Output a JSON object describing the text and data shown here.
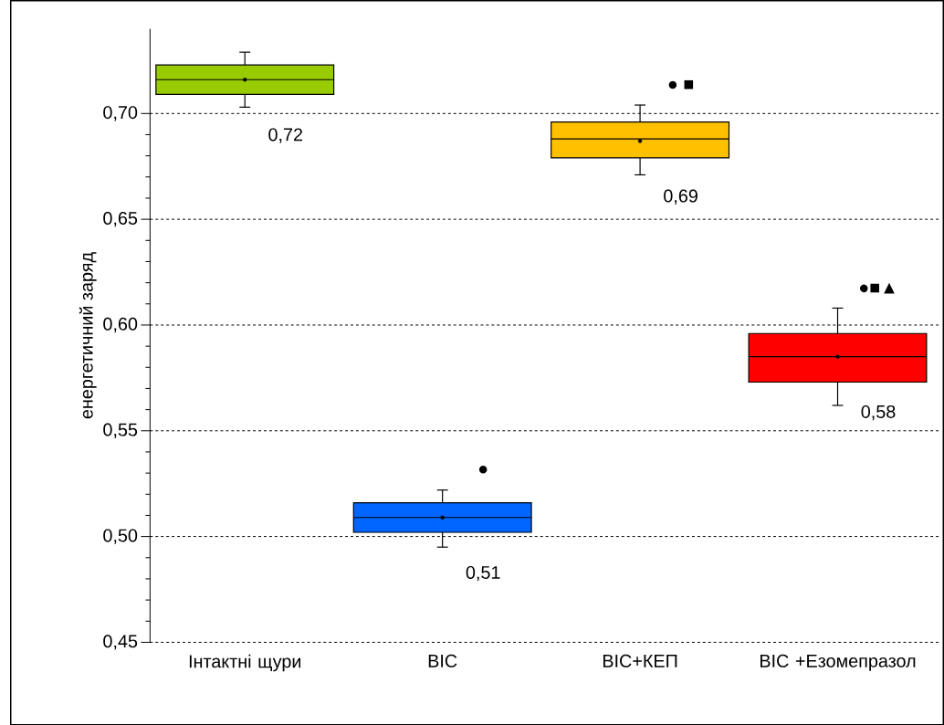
{
  "chart_data": {
    "type": "box",
    "ylabel": "енергетичний заряд",
    "categories": [
      "Інтактні щури",
      "ВІС",
      "ВІС+КЕП",
      "ВІС +Езомепразол"
    ],
    "colors": [
      "#99cc00",
      "#0066ff",
      "#ffc000",
      "#ff0000"
    ],
    "boxes": [
      {
        "low": 0.703,
        "q1": 0.709,
        "median": 0.716,
        "q3": 0.723,
        "high": 0.729,
        "mean": 0.716
      },
      {
        "low": 0.495,
        "q1": 0.502,
        "median": 0.509,
        "q3": 0.516,
        "high": 0.522,
        "mean": 0.509
      },
      {
        "low": 0.671,
        "q1": 0.679,
        "median": 0.688,
        "q3": 0.696,
        "high": 0.704,
        "mean": 0.687
      },
      {
        "low": 0.562,
        "q1": 0.573,
        "median": 0.585,
        "q3": 0.596,
        "high": 0.608,
        "mean": 0.585
      }
    ],
    "ylim": [
      0.45,
      0.74
    ],
    "yticks": [
      {
        "value": 0.45,
        "label": "0,45"
      },
      {
        "value": 0.5,
        "label": "0,50"
      },
      {
        "value": 0.55,
        "label": "0,55"
      },
      {
        "value": 0.6,
        "label": "0,60"
      },
      {
        "value": 0.65,
        "label": "0,65"
      },
      {
        "value": 0.7,
        "label": "0,70"
      }
    ],
    "grid": "y",
    "annotations": [
      {
        "text": "0,72",
        "x": "Інтактні щури",
        "y": 0.716
      },
      {
        "text": "0,51",
        "x": "ВІС",
        "y": 0.509
      },
      {
        "text": "●",
        "x": "ВІС",
        "y": 0.522
      },
      {
        "text": "0,69",
        "x": "ВІС+КЕП",
        "y": 0.687
      },
      {
        "text": "● ■",
        "x": "ВІС+КЕП",
        "y": 0.704
      },
      {
        "text": "0,58",
        "x": "ВІС +Езомепразол",
        "y": 0.585
      },
      {
        "text": "●■▲",
        "x": "ВІС +Езомепразол",
        "y": 0.608
      }
    ]
  }
}
